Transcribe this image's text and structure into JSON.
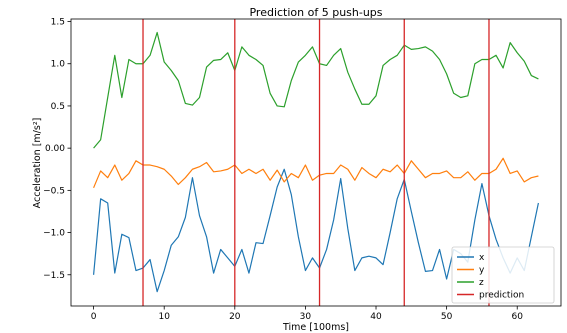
{
  "chart_data": {
    "type": "line",
    "title": "Prediction of 5 push-ups",
    "xlabel": "Time [100ms]",
    "ylabel": "Acceleration [m/s²]",
    "xlim": [
      -3.2,
      66.2
    ],
    "ylim": [
      -1.87,
      1.53
    ],
    "xticks": [
      0,
      10,
      20,
      30,
      40,
      50,
      60
    ],
    "yticks": [
      -1.5,
      -1.0,
      -0.5,
      0.0,
      0.5,
      1.0,
      1.5
    ],
    "ytick_labels": [
      "−1.5",
      "−1.0",
      "−0.5",
      "0.00",
      "0.5",
      "1.0",
      "1.5"
    ],
    "grid": false,
    "legend_position": "bottom-right",
    "series": [
      {
        "name": "x",
        "color": "#1f77b4",
        "values": [
          -1.5,
          -0.6,
          -0.65,
          -1.48,
          -1.02,
          -1.06,
          -1.45,
          -1.42,
          -1.32,
          -1.7,
          -1.45,
          -1.15,
          -1.05,
          -0.82,
          -0.35,
          -0.8,
          -1.05,
          -1.48,
          -1.2,
          -1.3,
          -1.4,
          -1.2,
          -1.48,
          -1.12,
          -1.13,
          -0.8,
          -0.46,
          -0.25,
          -0.55,
          -1.05,
          -1.45,
          -1.3,
          -1.42,
          -1.2,
          -0.85,
          -0.36,
          -0.95,
          -1.45,
          -1.3,
          -1.28,
          -1.3,
          -1.38,
          -1.0,
          -0.6,
          -0.37,
          -0.75,
          -1.12,
          -1.46,
          -1.45,
          -1.2,
          -1.55,
          -1.2,
          -1.25,
          -1.35,
          -0.85,
          -0.42,
          -0.8,
          -1.08,
          -1.3,
          -1.48,
          -1.3,
          -1.45,
          -1.05,
          -0.65
        ]
      },
      {
        "name": "y",
        "color": "#ff7f0e",
        "values": [
          -0.47,
          -0.27,
          -0.35,
          -0.2,
          -0.38,
          -0.3,
          -0.15,
          -0.2,
          -0.2,
          -0.22,
          -0.25,
          -0.33,
          -0.43,
          -0.35,
          -0.25,
          -0.22,
          -0.17,
          -0.28,
          -0.27,
          -0.25,
          -0.2,
          -0.3,
          -0.25,
          -0.3,
          -0.25,
          -0.38,
          -0.26,
          -0.4,
          -0.3,
          -0.35,
          -0.2,
          -0.38,
          -0.32,
          -0.3,
          -0.3,
          -0.2,
          -0.25,
          -0.38,
          -0.23,
          -0.3,
          -0.35,
          -0.25,
          -0.28,
          -0.2,
          -0.3,
          -0.15,
          -0.25,
          -0.35,
          -0.3,
          -0.3,
          -0.27,
          -0.35,
          -0.35,
          -0.28,
          -0.38,
          -0.3,
          -0.3,
          -0.25,
          -0.12,
          -0.3,
          -0.27,
          -0.4,
          -0.35,
          -0.33
        ]
      },
      {
        "name": "z",
        "color": "#2ca02c",
        "values": [
          0.0,
          0.1,
          0.6,
          1.1,
          0.6,
          1.05,
          1.0,
          1.0,
          1.1,
          1.37,
          1.02,
          0.92,
          0.8,
          0.53,
          0.51,
          0.6,
          0.96,
          1.04,
          1.05,
          1.13,
          0.92,
          1.2,
          1.1,
          1.05,
          0.98,
          0.65,
          0.5,
          0.49,
          0.8,
          1.02,
          1.1,
          1.2,
          1.0,
          0.98,
          1.1,
          1.18,
          0.9,
          0.7,
          0.52,
          0.52,
          0.62,
          0.98,
          1.05,
          1.1,
          1.22,
          1.17,
          1.18,
          1.2,
          1.15,
          1.05,
          0.88,
          0.65,
          0.6,
          0.62,
          1.0,
          1.05,
          1.05,
          1.1,
          0.95,
          1.25,
          1.13,
          1.03,
          0.86,
          0.82
        ]
      }
    ],
    "predictions": {
      "name": "prediction",
      "color": "#d62728",
      "x": [
        7,
        20,
        32,
        44,
        56
      ]
    }
  }
}
